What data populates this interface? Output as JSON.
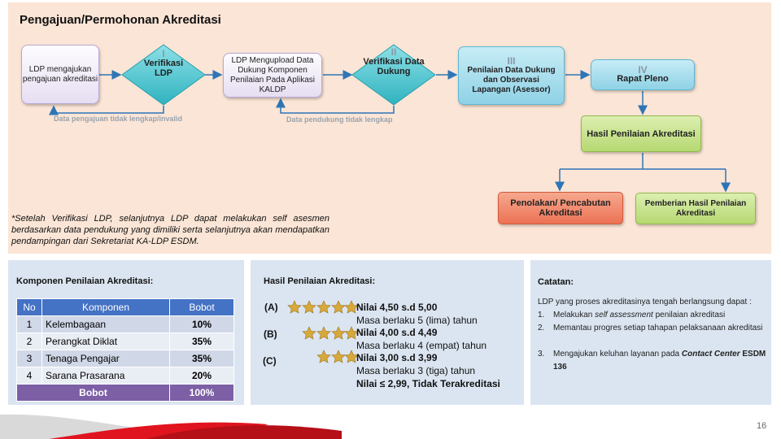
{
  "header": {
    "title": "Pengajuan/Permohonan Akreditasi"
  },
  "flow": {
    "nodes": [
      {
        "label": "LDP mengajukan pengajuan akreditasi"
      },
      {
        "numeral": "I",
        "label": "Verifikasi LDP"
      },
      {
        "label": "LDP Mengupload Data Dukung Komponen Penilaian Pada Aplikasi KALDP"
      },
      {
        "numeral": "II",
        "label": "Verifikasi Data Dukung"
      },
      {
        "numeral": "III",
        "label": "Penilaian Data Dukung dan Observasi Lapangan (Asessor)"
      },
      {
        "numeral": "IV",
        "label": "Rapat Pleno"
      },
      {
        "label": "Hasil Penilaian Akreditasi"
      },
      {
        "label": "Penolakan/ Pencabutan Akreditasi"
      },
      {
        "label": "Pemberian Hasil Penilaian Akreditasi"
      }
    ],
    "loops": [
      "Data pengajuan tidak lengkap/invalid",
      "Data pendukung tidak lengkap"
    ],
    "note": "*Setelah Verifikasi LDP, selanjutnya LDP dapat melakukan self asesmen berdasarkan data pendukung yang dimiliki serta selanjutnya akan mendapatkan pendampingan dari Sekretariat KA-LDP ESDM."
  },
  "components": {
    "title": "Komponen Penilaian Akreditasi:",
    "table": {
      "header": [
        "No",
        "Komponen",
        "Bobot"
      ],
      "rows": [
        [
          "1",
          "Kelembagaan",
          "10%"
        ],
        [
          "2",
          "Perangkat Diklat",
          "35%"
        ],
        [
          "3",
          "Tenaga Pengajar",
          "35%"
        ],
        [
          "4",
          "Sarana Prasarana",
          "20%"
        ]
      ],
      "footer": [
        "Bobot",
        "100%"
      ]
    }
  },
  "results": {
    "title": "Hasil Penilaian Akreditasi:",
    "grades": [
      {
        "label": "(A)",
        "score": "Nilai 4,50 s.d 5,00",
        "validity": "Masa berlaku 5 (lima) tahun"
      },
      {
        "label": "(B)",
        "score": "Nilai 4,00 s.d 4,49",
        "validity": "Masa berlaku 4 (empat) tahun"
      },
      {
        "label": "(C)",
        "score": "Nilai 3,00 s.d 3,99",
        "validity": "Masa berlaku 3 (tiga) tahun"
      }
    ],
    "fail": "Nilai ≤ 2,99, Tidak Terakreditasi"
  },
  "notes": {
    "title": "Catatan:",
    "intro": "LDP yang proses akreditasinya tengah berlangsung dapat :",
    "items": [
      {
        "num": "1.",
        "parts": [
          "Melakukan ",
          "self assessment",
          " penilaian akreditasi"
        ]
      },
      {
        "num": "2.",
        "parts": [
          "Memantau progres setiap tahapan pelaksanaan akreditasi"
        ]
      },
      {
        "num": "3.",
        "parts": [
          "Mengajukan keluhan layanan pada ",
          "Contact Center",
          " ESDM 136"
        ]
      }
    ]
  },
  "footer": {
    "page": "16"
  }
}
